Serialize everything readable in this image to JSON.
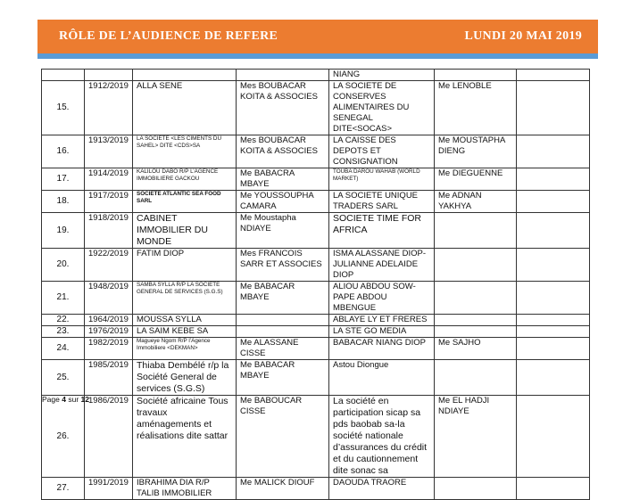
{
  "header": {
    "title": "RÔLE DE L’AUDIENCE DE REFERE",
    "date": "LUNDI 20 MAI 2019",
    "colors": {
      "banner": "#ec7c30",
      "stripe": "#5b9bd5"
    }
  },
  "table": {
    "rows": [
      {
        "num": "",
        "case": "",
        "party1": "",
        "lawyer1": "",
        "party2": "NIANG",
        "lawyer2": "",
        "extra": ""
      },
      {
        "num": "15.",
        "case": "1912/2019",
        "party1": "ALLA SENE",
        "lawyer1": "Mes BOUBACAR KOITA & ASSOCIES",
        "party2": "LA SOCIETE DE CONSERVES ALIMENTAIRES DU SENEGAL DITE<SOCAS>",
        "lawyer2": "Me LENOBLE",
        "extra": ""
      },
      {
        "num": "16.",
        "case": "1913/2019",
        "party1": "LA SOCIETE <LES CIMENTS DU SAHEL> DITE <CDS>SA",
        "lawyer1": "Mes BOUBACAR KOITA & ASSOCIES",
        "party2": "LA CAISSE DES DEPOTS ET CONSIGNATION",
        "lawyer2": "Me MOUSTAPHA DIENG",
        "extra": ""
      },
      {
        "num": "17.",
        "case": "1914/2019",
        "party1": "KALILOU DABO R/P L’AGENCE IMMOBILIERE GACKOU",
        "lawyer1": "Me BABACRA MBAYE",
        "party2": "TOUBA DAROU WAHAB (WORLD MARKET)",
        "lawyer2": "Me DIEGUENNE",
        "extra": ""
      },
      {
        "num": "18.",
        "case": "1917/2019",
        "party1": "SOCIETE ATLANTIC SEA FOOD SARL",
        "lawyer1": "Me YOUSSOUPHA CAMARA",
        "party2": "LA SOCIETE UNIQUE TRADERS SARL",
        "lawyer2": "Me ADNAN YAKHYA",
        "extra": ""
      },
      {
        "num": "19.",
        "case": "1918/2019",
        "party1": "CABINET IMMOBILIER DU MONDE",
        "lawyer1": "Me Moustapha NDIAYE",
        "party2": "SOCIETE TIME FOR AFRICA",
        "lawyer2": "",
        "extra": ""
      },
      {
        "num": "20.",
        "case": "1922/2019",
        "party1": "FATIM DIOP",
        "lawyer1": "Mes FRANCOIS SARR ET ASSOCIES",
        "party2": "ISMA ALASSANE DIOP-JULIANNE ADELAIDE DIOP",
        "lawyer2": "",
        "extra": ""
      },
      {
        "num": "21.",
        "case": "1948/2019",
        "party1": "SAMBA SYLLA R/P LA SOCIETE GENERAL DE SERVICES (S.G.S)",
        "lawyer1": "Me BABACAR MBAYE",
        "party2": "ALIOU ABDOU SOW-PAPE ABDOU MBENGUE",
        "lawyer2": "",
        "extra": ""
      },
      {
        "num": "22.",
        "case": "1964/2019",
        "party1": "MOUSSA SYLLA",
        "lawyer1": "",
        "party2": "ABLAYE LY ET FRERES",
        "lawyer2": "",
        "extra": ""
      },
      {
        "num": "23.",
        "case": "1976/2019",
        "party1": "LA SAIM KEBE SA",
        "lawyer1": "",
        "party2": "LA STE GO MEDIA",
        "lawyer2": "",
        "extra": ""
      },
      {
        "num": "24.",
        "case": "1982/2019",
        "party1": "Magueye Ngom R/P l’Agence Immobiliere <DEKMAN>",
        "lawyer1": "Me ALASSANE CISSE",
        "party2": "BABACAR NIANG DIOP",
        "lawyer2": "Me SAJHO",
        "extra": ""
      },
      {
        "num": "25.",
        "case": "1985/2019",
        "party1": "Thiaba Dembélé r/p la Société General de services (S.G.S)",
        "lawyer1": "Me BABACAR MBAYE",
        "party2": "Astou Diongue",
        "lawyer2": "",
        "extra": ""
      },
      {
        "num": "26.",
        "case": "1986/2019",
        "party1": "Société africaine Tous travaux aménagements et réalisations dite sattar",
        "lawyer1": "Me BABOUCAR CISSE",
        "party2": "La société en participation sicap sa pds baobab sa-la société nationale d’assurances du crédit et du cautionnement dite sonac sa",
        "lawyer2": "Me EL HADJI NDIAYE",
        "extra": ""
      },
      {
        "num": "27.",
        "case": "1991/2019",
        "party1": "IBRAHIMA DIA R/P TALIB IMMOBILIER",
        "lawyer1": "Me MALICK DIOUF",
        "party2": "DAOUDA TRAORE",
        "lawyer2": "",
        "extra": ""
      }
    ]
  },
  "footer": {
    "page_word": "Page",
    "page": "4",
    "of_word": "sur",
    "total": "12"
  }
}
